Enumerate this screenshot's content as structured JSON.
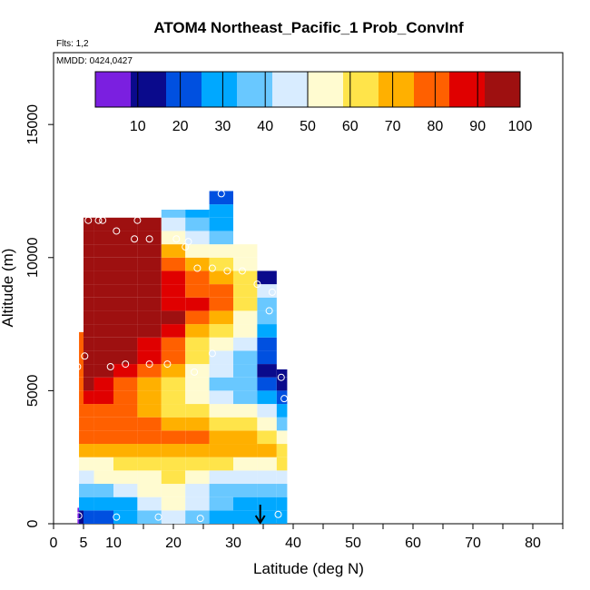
{
  "chart_data": {
    "type": "heatmap",
    "title": "ATOM4 Northeast_Pacific_1 Prob_ConvInf",
    "flights_label": "Flts: 1,2",
    "dates_label": "MMDD: 0424,0427",
    "xlabel": "Latitude (deg N)",
    "ylabel": "Altitude (m)",
    "xlim": [
      0,
      85
    ],
    "ylim": [
      0,
      17700
    ],
    "x_ticks": [
      0,
      5,
      10,
      20,
      30,
      40,
      50,
      60,
      70,
      80
    ],
    "x_tick_labels": [
      "0",
      "5",
      "10",
      "20",
      "30",
      "40",
      "50",
      "60",
      "70",
      "80"
    ],
    "y_ticks": [
      0,
      5000,
      10000,
      15000
    ],
    "y_tick_labels": [
      "0",
      "5000",
      "10000",
      "15000"
    ],
    "colorbar": {
      "range": [
        0,
        100
      ],
      "ticks": [
        10,
        20,
        30,
        40,
        50,
        60,
        70,
        80,
        90,
        100
      ],
      "tick_labels": [
        "10",
        "20",
        "30",
        "40",
        "50",
        "60",
        "70",
        "80",
        "90",
        "100"
      ],
      "colors": [
        "#7b1fe0",
        "#0a0a8c",
        "#0050e0",
        "#00a8ff",
        "#69c8ff",
        "#d8ecff",
        "#fffbd0",
        "#ffe44a",
        "#ffb000",
        "#ff6000",
        "#e00000",
        "#9e1010"
      ]
    },
    "marker_latitude": 34.5,
    "column_profiles": [
      {
        "lat": 4.0,
        "top": 600,
        "values": [
          0
        ]
      },
      {
        "lat": 4.5,
        "top": 7200,
        "values": [
          15,
          25,
          35,
          45,
          55,
          70,
          75,
          75,
          78,
          80,
          80,
          80
        ]
      },
      {
        "lat": 5.5,
        "top": 11500,
        "values": [
          18,
          28,
          38,
          48,
          56,
          70,
          76,
          78,
          80,
          85,
          92,
          95,
          98,
          98,
          98,
          98,
          98,
          98,
          98,
          98,
          98,
          98,
          98
        ]
      },
      {
        "lat": 8,
        "top": 11500,
        "values": [
          20,
          30,
          40,
          50,
          58,
          70,
          76,
          78,
          80,
          85,
          90,
          95,
          98,
          98,
          98,
          98,
          98,
          98,
          98,
          98,
          98,
          98,
          98
        ]
      },
      {
        "lat": 12,
        "top": 11500,
        "values": [
          25,
          32,
          42,
          52,
          60,
          72,
          78,
          78,
          76,
          78,
          82,
          88,
          92,
          96,
          98,
          98,
          98,
          98,
          98,
          98,
          98,
          98,
          98
        ]
      },
      {
        "lat": 16,
        "top": 11500,
        "values": [
          38,
          42,
          50,
          56,
          62,
          72,
          78,
          76,
          72,
          70,
          74,
          80,
          86,
          90,
          94,
          96,
          96,
          96,
          96,
          96,
          96,
          96,
          96
        ]
      },
      {
        "lat": 20,
        "top": 11800,
        "values": [
          48,
          52,
          56,
          60,
          64,
          74,
          78,
          72,
          65,
          60,
          62,
          68,
          76,
          82,
          88,
          92,
          90,
          88,
          86,
          80,
          70,
          55,
          45,
          35
        ]
      },
      {
        "lat": 24,
        "top": 11800,
        "values": [
          38,
          42,
          48,
          54,
          62,
          72,
          76,
          70,
          60,
          52,
          50,
          54,
          60,
          66,
          72,
          80,
          85,
          82,
          78,
          70,
          55,
          45,
          35,
          30
        ]
      },
      {
        "lat": 28,
        "top": 12500,
        "values": [
          30,
          34,
          40,
          48,
          60,
          72,
          74,
          66,
          56,
          46,
          40,
          42,
          48,
          55,
          62,
          70,
          78,
          76,
          70,
          62,
          50,
          40,
          32,
          28,
          18
        ]
      },
      {
        "lat": 32,
        "top": 10500,
        "values": [
          28,
          30,
          36,
          46,
          58,
          70,
          72,
          62,
          50,
          40,
          34,
          34,
          38,
          44,
          50,
          58,
          66,
          64,
          60,
          55,
          50
        ]
      },
      {
        "lat": 36,
        "top": 9500,
        "values": [
          25,
          28,
          34,
          44,
          56,
          68,
          66,
          55,
          42,
          32,
          22,
          16,
          18,
          22,
          28,
          35,
          40,
          45,
          12
        ]
      },
      {
        "lat": 38.5,
        "top": 5800,
        "values": [
          28,
          32,
          38,
          48,
          60,
          62,
          50,
          38,
          28,
          20,
          15,
          10
        ]
      }
    ],
    "flight_points": [
      {
        "lat": 4.2,
        "alt": 300
      },
      {
        "lat": 10.5,
        "alt": 250
      },
      {
        "lat": 17.5,
        "alt": 250
      },
      {
        "lat": 24.5,
        "alt": 200
      },
      {
        "lat": 37.5,
        "alt": 350
      },
      {
        "lat": 4,
        "alt": 5900
      },
      {
        "lat": 5.2,
        "alt": 6300
      },
      {
        "lat": 9.5,
        "alt": 5900
      },
      {
        "lat": 12,
        "alt": 6000
      },
      {
        "lat": 16,
        "alt": 6000
      },
      {
        "lat": 19,
        "alt": 6000
      },
      {
        "lat": 23.5,
        "alt": 5700
      },
      {
        "lat": 26.5,
        "alt": 6400
      },
      {
        "lat": 38,
        "alt": 5500
      },
      {
        "lat": 38.5,
        "alt": 4700
      },
      {
        "lat": 36,
        "alt": 8000
      },
      {
        "lat": 34,
        "alt": 9000
      },
      {
        "lat": 36.5,
        "alt": 8700
      },
      {
        "lat": 24,
        "alt": 9600
      },
      {
        "lat": 26.5,
        "alt": 9600
      },
      {
        "lat": 29,
        "alt": 9500
      },
      {
        "lat": 31.5,
        "alt": 9500
      },
      {
        "lat": 22,
        "alt": 10400
      },
      {
        "lat": 22.5,
        "alt": 10600
      },
      {
        "lat": 20.5,
        "alt": 10700
      },
      {
        "lat": 13.5,
        "alt": 10700
      },
      {
        "lat": 16,
        "alt": 10700
      },
      {
        "lat": 10.5,
        "alt": 11000
      },
      {
        "lat": 5.8,
        "alt": 11400
      },
      {
        "lat": 7.5,
        "alt": 11400
      },
      {
        "lat": 8.2,
        "alt": 11400
      },
      {
        "lat": 14,
        "alt": 11400
      },
      {
        "lat": 28,
        "alt": 12400
      },
      {
        "lat": 31,
        "alt": 12400
      }
    ]
  }
}
